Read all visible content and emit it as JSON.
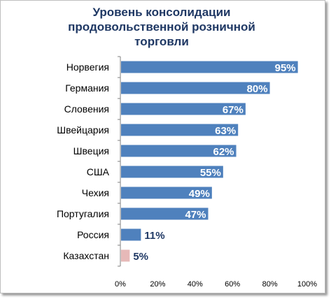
{
  "chart_data": {
    "type": "bar",
    "orientation": "horizontal",
    "title_lines": [
      "Уровень консолидации",
      "продовольственной розничной",
      "торговли"
    ],
    "categories": [
      "Норвегия",
      "Германия",
      "Словения",
      "Швейцария",
      "Швеция",
      "США",
      "Чехия",
      "Португалия",
      "Россия",
      "Казахстан"
    ],
    "values": [
      95,
      80,
      67,
      63,
      62,
      55,
      49,
      47,
      11,
      5
    ],
    "value_labels": [
      "95%",
      "80%",
      "67%",
      "63%",
      "62%",
      "55%",
      "49%",
      "47%",
      "11%",
      "5%"
    ],
    "colors": [
      "#4f81bd",
      "#4f81bd",
      "#4f81bd",
      "#4f81bd",
      "#4f81bd",
      "#4f81bd",
      "#4f81bd",
      "#4f81bd",
      "#4f81bd",
      "#e6b9b8"
    ],
    "xlim": [
      0,
      100
    ],
    "xticks": [
      "0%",
      "20%",
      "40%",
      "60%",
      "80%",
      "100%"
    ],
    "grid": false,
    "legend": "none"
  }
}
